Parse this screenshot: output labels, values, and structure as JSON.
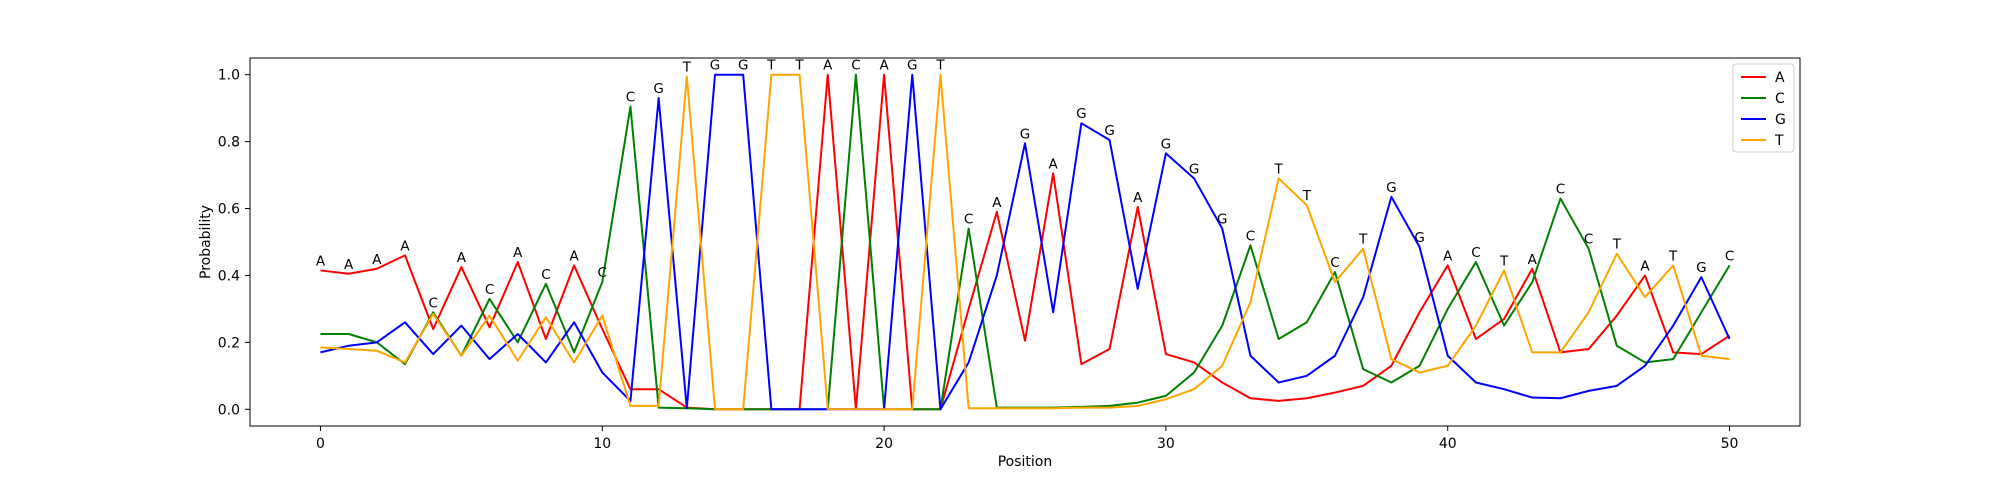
{
  "chart_data": {
    "type": "line",
    "title": "",
    "xlabel": "Position",
    "ylabel": "Probability",
    "xlim": [
      -2.5,
      52.5
    ],
    "ylim": [
      -0.05,
      1.05
    ],
    "xticks": [
      0,
      10,
      20,
      30,
      40,
      50
    ],
    "yticks": [
      0.0,
      0.2,
      0.4,
      0.6,
      0.8,
      1.0
    ],
    "ytick_labels": [
      "0.0",
      "0.2",
      "0.4",
      "0.6",
      "0.8",
      "1.0"
    ],
    "grid": false,
    "legend_position": "top-right",
    "x": [
      0,
      1,
      2,
      3,
      4,
      5,
      6,
      7,
      8,
      9,
      10,
      11,
      12,
      13,
      14,
      15,
      16,
      17,
      18,
      19,
      20,
      21,
      22,
      23,
      24,
      25,
      26,
      27,
      28,
      29,
      30,
      31,
      32,
      33,
      34,
      35,
      36,
      37,
      38,
      39,
      40,
      41,
      42,
      43,
      44,
      45,
      46,
      47,
      48,
      49,
      50
    ],
    "series": [
      {
        "name": "A",
        "color": "#ff0000",
        "values": [
          0.415,
          0.405,
          0.42,
          0.46,
          0.24,
          0.425,
          0.245,
          0.44,
          0.21,
          0.43,
          0.24,
          0.06,
          0.06,
          0.005,
          0.0,
          0.0,
          0.0,
          0.0,
          1.0,
          0.0,
          1.0,
          0.0,
          0.0,
          0.3,
          0.59,
          0.205,
          0.705,
          0.135,
          0.18,
          0.605,
          0.165,
          0.14,
          0.08,
          0.033,
          0.025,
          0.033,
          0.05,
          0.07,
          0.13,
          0.29,
          0.43,
          0.21,
          0.27,
          0.42,
          0.17,
          0.18,
          0.28,
          0.4,
          0.17,
          0.165,
          0.22
        ]
      },
      {
        "name": "C",
        "color": "#008000",
        "values": [
          0.225,
          0.225,
          0.2,
          0.135,
          0.29,
          0.16,
          0.33,
          0.2,
          0.375,
          0.17,
          0.38,
          0.905,
          0.005,
          0.003,
          0.0,
          0.0,
          0.0,
          0.0,
          0.0,
          1.0,
          0.0,
          0.0,
          0.0,
          0.54,
          0.005,
          0.005,
          0.005,
          0.007,
          0.01,
          0.02,
          0.04,
          0.11,
          0.25,
          0.49,
          0.21,
          0.26,
          0.41,
          0.12,
          0.08,
          0.13,
          0.3,
          0.44,
          0.25,
          0.38,
          0.63,
          0.48,
          0.19,
          0.14,
          0.15,
          0.29,
          0.43
        ]
      },
      {
        "name": "G",
        "color": "#0000ff",
        "values": [
          0.17,
          0.19,
          0.2,
          0.26,
          0.165,
          0.25,
          0.15,
          0.225,
          0.14,
          0.26,
          0.11,
          0.025,
          0.93,
          0.003,
          1.0,
          1.0,
          0.0,
          0.0,
          0.0,
          0.0,
          0.0,
          1.0,
          0.0,
          0.14,
          0.4,
          0.795,
          0.29,
          0.855,
          0.805,
          0.36,
          0.765,
          0.69,
          0.54,
          0.16,
          0.08,
          0.1,
          0.16,
          0.335,
          0.635,
          0.485,
          0.16,
          0.08,
          0.06,
          0.035,
          0.033,
          0.055,
          0.07,
          0.13,
          0.25,
          0.395,
          0.21
        ]
      },
      {
        "name": "T",
        "color": "#ffa500",
        "values": [
          0.185,
          0.18,
          0.175,
          0.14,
          0.285,
          0.16,
          0.28,
          0.145,
          0.275,
          0.14,
          0.28,
          0.01,
          0.01,
          0.995,
          0.0,
          0.0,
          1.0,
          1.0,
          0.0,
          0.0,
          0.0,
          0.0,
          1.0,
          0.003,
          0.003,
          0.003,
          0.003,
          0.005,
          0.005,
          0.01,
          0.03,
          0.06,
          0.13,
          0.32,
          0.69,
          0.61,
          0.38,
          0.48,
          0.15,
          0.11,
          0.13,
          0.25,
          0.415,
          0.17,
          0.17,
          0.29,
          0.465,
          0.335,
          0.43,
          0.16,
          0.15
        ]
      }
    ],
    "annotations": [
      "A",
      "A",
      "A",
      "A",
      "C",
      "A",
      "C",
      "A",
      "C",
      "A",
      "C",
      "C",
      "G",
      "T",
      "G",
      "G",
      "T",
      "T",
      "A",
      "C",
      "A",
      "G",
      "T",
      "C",
      "A",
      "G",
      "A",
      "G",
      "G",
      "A",
      "G",
      "G",
      "G",
      "C",
      "T",
      "T",
      "C",
      "T",
      "G",
      "G",
      "A",
      "C",
      "T",
      "A",
      "C",
      "C",
      "T",
      "A",
      "T",
      "G",
      "C"
    ]
  }
}
